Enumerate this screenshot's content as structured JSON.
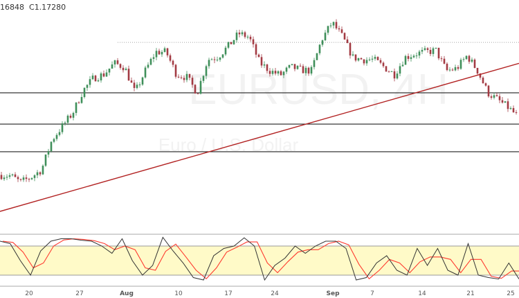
{
  "legend": {
    "partial_value": "16848",
    "close_label": "C",
    "close_value": "1.17280"
  },
  "watermark": {
    "symbol": "EURUSD, 4H",
    "description": "Euro / U.S. Dollar"
  },
  "colors": {
    "up": "#3f8f5a",
    "down": "#a33a43",
    "trendline": "#b22222",
    "level": "#222222",
    "stoch_k": "#333333",
    "stoch_d": "#ff3b30",
    "band": "#fffac8"
  },
  "chart_data": [
    {
      "type": "candlestick",
      "timeframe": "4H",
      "x_range": [
        "Jul 16",
        "Sep 25"
      ],
      "close_samples": [
        1.1573,
        1.1571,
        1.1553,
        1.1567,
        1.1587,
        1.1668,
        1.1705,
        1.1741,
        1.1802,
        1.1836,
        1.1846,
        1.1876,
        1.1866,
        1.1796,
        1.1856,
        1.1907,
        1.1907,
        1.1846,
        1.1838,
        1.1796,
        1.1886,
        1.1894,
        1.1923,
        1.1957,
        1.1947,
        1.1878,
        1.1856,
        1.1844,
        1.1866,
        1.1858,
        1.1856,
        1.1941,
        1.1987,
        1.1947,
        1.1892,
        1.1886,
        1.1886,
        1.1866,
        1.1846,
        1.1892,
        1.1902,
        1.1907,
        1.1911,
        1.1856,
        1.1862,
        1.1897,
        1.1856,
        1.1796,
        1.1776,
        1.1755,
        1.1728
      ],
      "last_close": 1.1728,
      "y_range": [
        1.1427,
        1.2048
      ],
      "horizontal_levels": [
        1.1796,
        1.1711,
        1.1636
      ],
      "dotted_level": {
        "price": 1.1933,
        "from": "Aug 1"
      },
      "trendline": {
        "start_price": 1.1474,
        "end_price": 1.1876
      },
      "x_ticks": [
        "20",
        "27",
        "Aug",
        "10",
        "17",
        "24",
        "Sep",
        "7",
        "14",
        "21",
        "25"
      ]
    },
    {
      "type": "line",
      "indicator": "stochastic",
      "y_range": [
        0,
        100
      ],
      "band": [
        20,
        80
      ],
      "k_samples": [
        90,
        85,
        50,
        20,
        70,
        90,
        95,
        95,
        92,
        90,
        80,
        65,
        95,
        50,
        20,
        40,
        98,
        70,
        45,
        15,
        10,
        60,
        75,
        80,
        97,
        80,
        10,
        40,
        55,
        80,
        65,
        80,
        90,
        90,
        75,
        10,
        15,
        45,
        60,
        30,
        20,
        75,
        40,
        75,
        30,
        20,
        85,
        20,
        15,
        12,
        45,
        12
      ]
    }
  ]
}
